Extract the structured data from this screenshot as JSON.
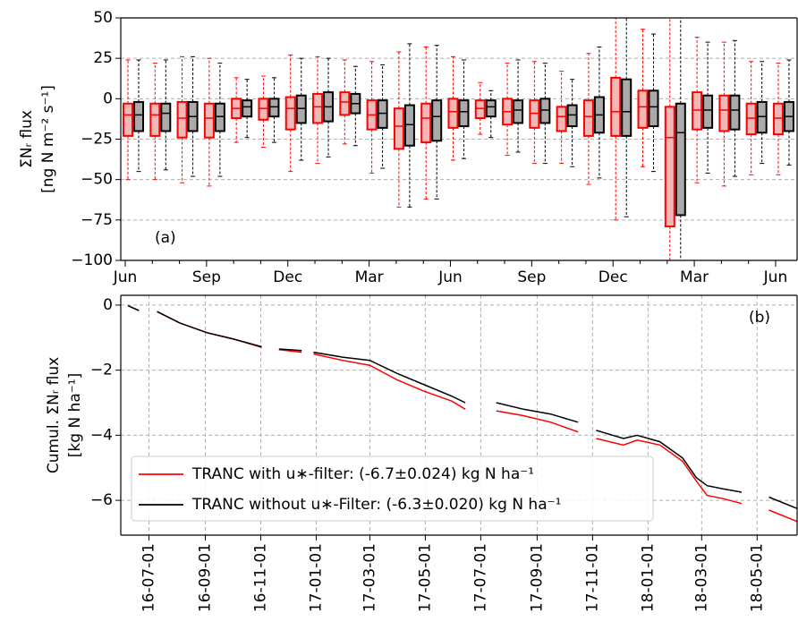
{
  "chart_data": [
    {
      "type": "box",
      "annotation": "(a)",
      "ylabel": [
        "ΣNᵣ flux",
        "[ng N m⁻² s⁻¹]"
      ],
      "categories": [
        "Jun",
        null,
        null,
        "Sep",
        null,
        null,
        "Dec",
        null,
        null,
        "Mar",
        null,
        null,
        "Jun",
        null,
        null,
        "Sep",
        null,
        null,
        "Dec",
        null,
        null,
        "Mar",
        null,
        null,
        "Jun"
      ],
      "series": [
        {
          "color": "#ff0000",
          "fill": "#f2b8b8",
          "low": [
            -50,
            -50,
            -52,
            -54,
            -27,
            -30,
            -45,
            -40,
            -28,
            -46,
            -67,
            -62,
            -38,
            -22,
            -35,
            -40,
            -40,
            -53,
            -75,
            -42,
            -100,
            -52,
            -54,
            -47,
            -47
          ],
          "q1": [
            -23,
            -23,
            -24,
            -24,
            -12,
            -13,
            -19,
            -15,
            -10,
            -19,
            -31,
            -27,
            -18,
            -12,
            -16,
            -18,
            -20,
            -23,
            -23,
            -18,
            -79,
            -19,
            -20,
            -22,
            -22
          ],
          "median": [
            -10,
            -10,
            -12,
            -12,
            -6,
            -6,
            -6,
            -5,
            -2,
            -10,
            -17,
            -12,
            -8,
            -6,
            -8,
            -9,
            -11,
            -11,
            -8,
            -5,
            -24,
            -7,
            -7,
            -12,
            -12
          ],
          "q3": [
            -3,
            -3,
            -2,
            -3,
            0,
            0,
            1,
            3,
            4,
            -1,
            -6,
            -3,
            0,
            -1,
            0,
            -1,
            -5,
            -1,
            13,
            5,
            -5,
            4,
            2,
            -3,
            -3
          ],
          "high": [
            24,
            22,
            26,
            25,
            13,
            14,
            27,
            26,
            24,
            23,
            29,
            32,
            26,
            10,
            22,
            23,
            17,
            28,
            50,
            43,
            50,
            38,
            35,
            23,
            22
          ]
        },
        {
          "color": "#000000",
          "fill": "#aaaaaa",
          "low": [
            -45,
            -44,
            -48,
            -48,
            -24,
            -27,
            -38,
            -36,
            -29,
            -43,
            -67,
            -62,
            -37,
            -24,
            -33,
            -40,
            -42,
            -49,
            -73,
            -45,
            -100,
            -46,
            -48,
            -40,
            -41
          ],
          "q1": [
            -20,
            -20,
            -20,
            -20,
            -11,
            -11,
            -15,
            -14,
            -9,
            -18,
            -29,
            -26,
            -17,
            -11,
            -15,
            -15,
            -17,
            -21,
            -23,
            -17,
            -72,
            -18,
            -19,
            -21,
            -20
          ],
          "median": [
            -10,
            -9,
            -11,
            -11,
            -5,
            -5,
            -6,
            -5,
            -3,
            -9,
            -16,
            -11,
            -8,
            -5,
            -7,
            -7,
            -10,
            -10,
            -8,
            -5,
            -21,
            -7,
            -7,
            -11,
            -11
          ],
          "q3": [
            -2,
            -3,
            -2,
            -3,
            -1,
            0,
            2,
            4,
            3,
            -1,
            -4,
            -1,
            -1,
            -1,
            -1,
            0,
            -4,
            1,
            12,
            5,
            -3,
            2,
            2,
            -2,
            -2
          ],
          "high": [
            24,
            24,
            26,
            22,
            12,
            13,
            25,
            25,
            20,
            21,
            34,
            33,
            24,
            5,
            24,
            22,
            12,
            32,
            50,
            40,
            50,
            35,
            36,
            23,
            24
          ]
        }
      ],
      "ylim": [
        -100,
        50
      ],
      "yticks": [
        {
          "value": -100,
          "label": "−100"
        },
        {
          "value": -75,
          "label": "−75"
        },
        {
          "value": -50,
          "label": "−50"
        },
        {
          "value": -25,
          "label": "−25"
        },
        0,
        25,
        50
      ],
      "grid": true
    },
    {
      "type": "line",
      "annotation": "(b)",
      "ylabel": [
        "Cumul. ΣNᵣ flux",
        "[kg N ha⁻¹]"
      ],
      "x": [
        "2016-06-08",
        "2016-06-20",
        "2016-06-24",
        "2016-07-10",
        "2016-08-04",
        "2016-09-03",
        "2016-10-03",
        "2016-11-02",
        "2016-11-15",
        "2016-11-21",
        "2016-12-16",
        "2016-12-22",
        "2016-12-29",
        "2017-01-30",
        "2017-03-01",
        "2017-03-31",
        "2017-04-30",
        "2017-05-30",
        "2017-06-14",
        "2017-06-30",
        "2017-07-18",
        "2017-08-17",
        "2017-09-16",
        "2017-10-16",
        "2017-10-22",
        "2017-11-05",
        "2017-12-05",
        "2017-12-20",
        "2018-01-14",
        "2018-02-08",
        "2018-02-23",
        "2018-03-07",
        "2018-03-25",
        "2018-04-14",
        "2018-04-28",
        "2018-05-14",
        "2018-06-14"
      ],
      "series": [
        {
          "name": "TRANC with u∗-filter: (-6.7±0.024) kg N ha⁻¹",
          "color": "#ff0000",
          "values": [
            -0.02,
            -0.17,
            null,
            -0.2,
            -0.55,
            -0.85,
            -1.05,
            -1.3,
            null,
            -1.37,
            -1.45,
            null,
            -1.5,
            -1.7,
            -1.85,
            -2.3,
            -2.65,
            -2.95,
            -3.2,
            null,
            -3.25,
            -3.4,
            -3.6,
            -3.9,
            null,
            -4.1,
            -4.3,
            -4.15,
            -4.3,
            -4.8,
            -5.4,
            -5.85,
            -5.95,
            -6.1,
            null,
            -6.3,
            -6.65
          ]
        },
        {
          "name": "TRANC without u∗-Filter: (-6.3±0.020) kg N ha⁻¹",
          "color": "#000000",
          "values": [
            -0.02,
            -0.17,
            null,
            -0.2,
            -0.55,
            -0.85,
            -1.05,
            -1.28,
            null,
            -1.35,
            -1.4,
            null,
            -1.45,
            -1.6,
            -1.7,
            -2.1,
            -2.45,
            -2.8,
            -3.0,
            null,
            -3.0,
            -3.2,
            -3.35,
            -3.6,
            null,
            -3.85,
            -4.1,
            -4.0,
            -4.2,
            -4.7,
            -5.3,
            -5.55,
            -5.65,
            -5.75,
            null,
            -5.9,
            -6.25
          ]
        }
      ],
      "xlim": [
        "2016-05-31",
        "2018-06-14"
      ],
      "xticks": [
        {
          "value": "2016-07-01",
          "label": "16-07-01"
        },
        {
          "value": "2016-09-01",
          "label": "16-09-01"
        },
        {
          "value": "2016-11-01",
          "label": "16-11-01"
        },
        {
          "value": "2017-01-01",
          "label": "17-01-01"
        },
        {
          "value": "2017-03-01",
          "label": "17-03-01"
        },
        {
          "value": "2017-05-01",
          "label": "17-05-01"
        },
        {
          "value": "2017-07-01",
          "label": "17-07-01"
        },
        {
          "value": "2017-09-01",
          "label": "17-09-01"
        },
        {
          "value": "2017-11-01",
          "label": "17-11-01"
        },
        {
          "value": "2018-01-01",
          "label": "18-01-01"
        },
        {
          "value": "2018-03-01",
          "label": "18-03-01"
        },
        {
          "value": "2018-05-01",
          "label": "18-05-01"
        }
      ],
      "ylim": [
        -7.07,
        0.3
      ],
      "yticks": [
        {
          "value": -6,
          "label": "−6"
        },
        {
          "value": -4,
          "label": "−4"
        },
        {
          "value": -2,
          "label": "−2"
        },
        0
      ],
      "grid": true,
      "legend": "lower left"
    }
  ]
}
